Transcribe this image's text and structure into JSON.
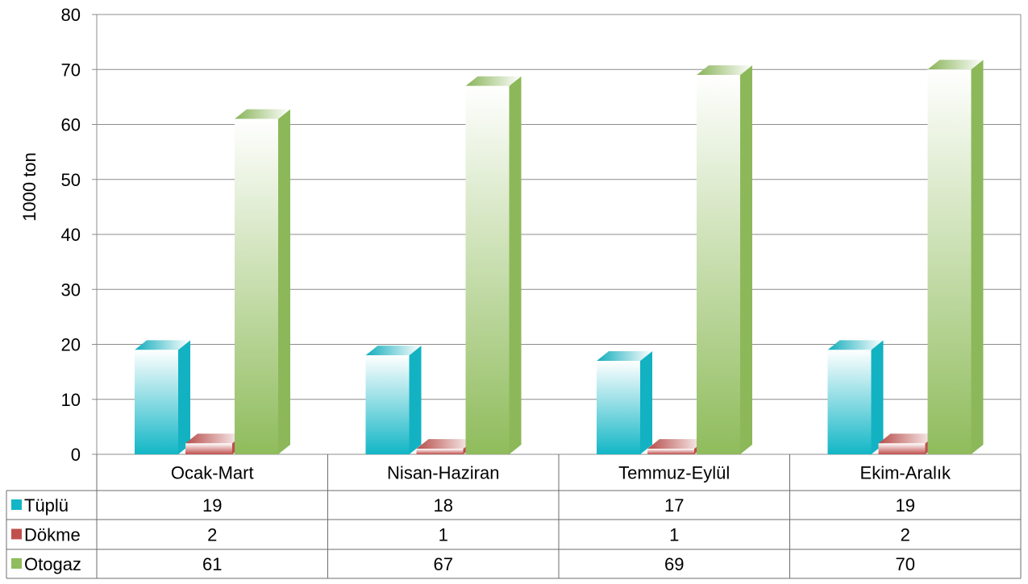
{
  "chart_data": {
    "type": "bar",
    "ylabel": "1000  ton",
    "ylim": [
      0,
      80
    ],
    "yticks": [
      0,
      10,
      20,
      30,
      40,
      50,
      60,
      70,
      80
    ],
    "grid": true,
    "legend": "data-table",
    "categories": [
      "Ocak-Mart",
      "Nisan-Haziran",
      "Temmuz-Eylül",
      "Ekim-Aralık"
    ],
    "series": [
      {
        "name": "Tüplü",
        "color": "#12b6c6",
        "values": [
          19,
          18,
          17,
          19
        ]
      },
      {
        "name": "Dökme",
        "color": "#c0504d",
        "values": [
          2,
          1,
          1,
          2
        ]
      },
      {
        "name": "Otogaz",
        "color": "#8fbc5c",
        "values": [
          61,
          67,
          69,
          70
        ]
      }
    ]
  }
}
